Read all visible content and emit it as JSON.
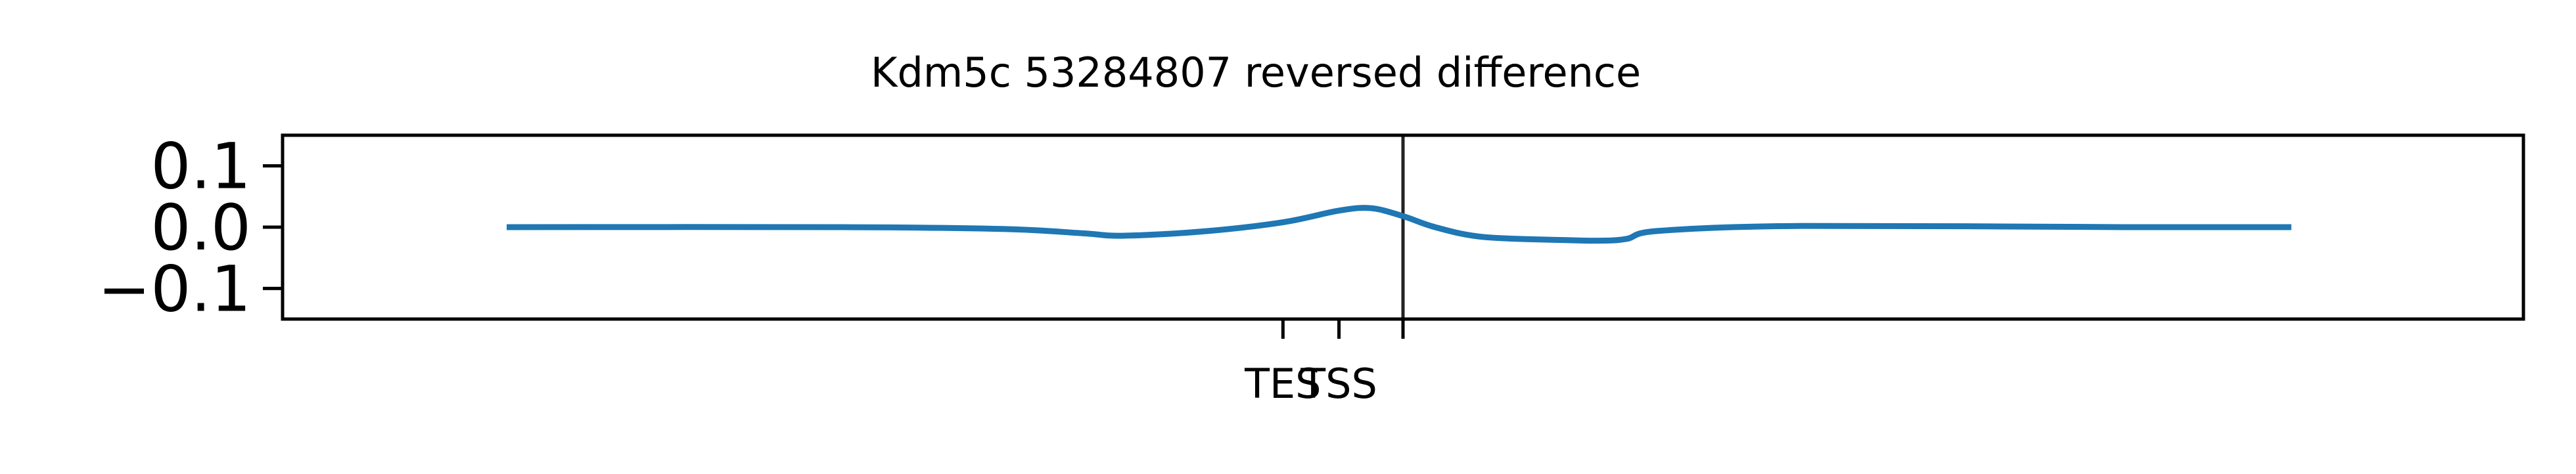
{
  "chart_data": {
    "type": "line",
    "title": "Kdm5c 53284807 reversed difference",
    "xlabel": "",
    "ylabel": "",
    "ylim": [
      -0.15,
      0.15
    ],
    "xlim": [
      -1400,
      1400
    ],
    "grid": false,
    "yticks": [
      {
        "value": 0.1,
        "label": "0.1"
      },
      {
        "value": 0.0,
        "label": "0.0"
      },
      {
        "value": -0.1,
        "label": "−0.1"
      }
    ],
    "xticks": [
      {
        "value": -150,
        "label": "TES"
      },
      {
        "value": -80,
        "label": "TSS"
      },
      {
        "value": 0,
        "label": ""
      }
    ],
    "vline": {
      "x": 0
    },
    "series": [
      {
        "color": "#1f77b4",
        "x": [
          -1120,
          -700,
          -500,
          -400,
          -350,
          -250,
          -150,
          -80,
          -40,
          0,
          40,
          100,
          200,
          250,
          280,
          320,
          500,
          900,
          1110
        ],
        "y": [
          0.0,
          0.0,
          -0.003,
          -0.01,
          -0.014,
          -0.007,
          0.008,
          0.027,
          0.031,
          0.018,
          0.0,
          -0.016,
          -0.021,
          -0.022,
          -0.019,
          -0.006,
          0.002,
          0.0,
          0.0
        ]
      }
    ]
  }
}
